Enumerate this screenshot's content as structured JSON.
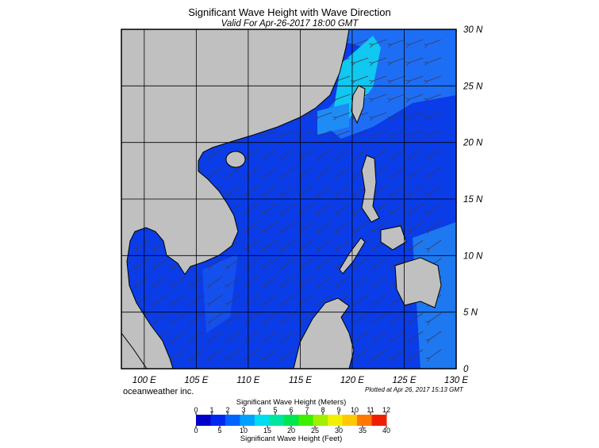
{
  "header": {
    "title": "Significant Wave Height with Wave Direction",
    "subtitle": "Valid For Apr-26-2017 18:00 GMT"
  },
  "map": {
    "xlim": [
      97.8,
      130
    ],
    "ylim": [
      0,
      30
    ],
    "xticks": [
      {
        "value": 100,
        "label": "100 E"
      },
      {
        "value": 105,
        "label": "105 E"
      },
      {
        "value": 110,
        "label": "110 E"
      },
      {
        "value": 115,
        "label": "115 E"
      },
      {
        "value": 120,
        "label": "120 E"
      },
      {
        "value": 125,
        "label": "125 E"
      },
      {
        "value": 130,
        "label": "130 E"
      }
    ],
    "yticks": [
      0,
      {
        "value": 5,
        "label": "5 N"
      },
      {
        "value": 10,
        "label": "10 N"
      },
      {
        "value": 15,
        "label": "15 N"
      },
      {
        "value": 20,
        "label": "20 N"
      },
      {
        "value": 25,
        "label": "25 N"
      },
      {
        "value": 30,
        "label": "30 N"
      }
    ]
  },
  "footer": {
    "credit": "oceanweather inc.",
    "plotted": "Plotted at Apr 26, 2017 15:13 GMT"
  },
  "colorbar": {
    "title_top": "Significant Wave Height (Meters)",
    "title_bottom": "Significant Wave Height (Feet)",
    "meters_lim": [
      0,
      12
    ],
    "meters_ticks": [
      0,
      1,
      2,
      3,
      4,
      5,
      6,
      7,
      8,
      9,
      10,
      11,
      12
    ],
    "feet_lim": [
      0,
      40
    ],
    "feet_ticks": [
      0,
      5,
      10,
      15,
      20,
      25,
      30,
      35,
      40
    ],
    "colors": [
      "#0000c8",
      "#0028f0",
      "#0064ff",
      "#00a0ff",
      "#00dcf0",
      "#00e6a0",
      "#00e650",
      "#3cf000",
      "#a0f000",
      "#f0f000",
      "#ffc800",
      "#ff7800",
      "#f01e00"
    ]
  }
}
